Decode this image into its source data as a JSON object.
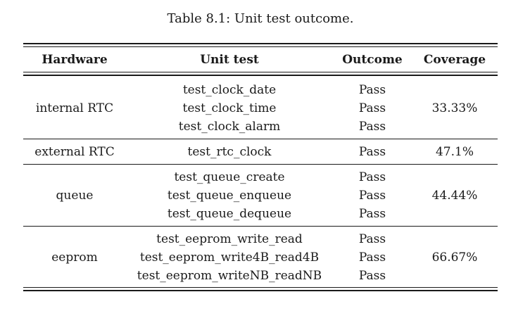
{
  "caption": "Table 8.1: Unit test outcome.",
  "headers": {
    "hardware": "Hardware",
    "unit_test": "Unit test",
    "outcome": "Outcome",
    "coverage": "Coverage"
  },
  "rows": [
    {
      "hardware": "internal RTC",
      "tests": [
        "test_clock_date",
        "test_clock_time",
        "test_clock_alarm"
      ],
      "outcomes": [
        "Pass",
        "Pass",
        "Pass"
      ],
      "coverage": "33.33%"
    },
    {
      "hardware": "external RTC",
      "tests": [
        "test_rtc_clock"
      ],
      "outcomes": [
        "Pass"
      ],
      "coverage": "47.1%"
    },
    {
      "hardware": "queue",
      "tests": [
        "test_queue_create",
        "test_queue_enqueue",
        "test_queue_dequeue"
      ],
      "outcomes": [
        "Pass",
        "Pass",
        "Pass"
      ],
      "coverage": "44.44%"
    },
    {
      "hardware": "eeprom",
      "tests": [
        "test_eeprom_write_read",
        "test_eeprom_write4B_read4B",
        "test_eeprom_writeNB_readNB"
      ],
      "outcomes": [
        "Pass",
        "Pass",
        "Pass"
      ],
      "coverage": "66.67%"
    }
  ]
}
